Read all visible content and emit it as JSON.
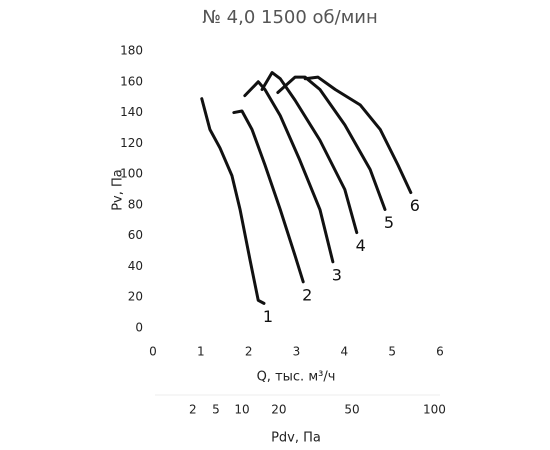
{
  "chart_data": {
    "type": "line",
    "title": "№ 4,0 1500 об/мин",
    "x_label": "Q, тыс. м³/ч",
    "y_label": "Pv, Па",
    "x2_label": "Pdv, Па",
    "xlim": [
      0,
      6
    ],
    "xticks": [
      0,
      1,
      2,
      3,
      4,
      5,
      6
    ],
    "ylim": [
      0,
      180
    ],
    "yticks": [
      0,
      20,
      40,
      60,
      80,
      100,
      120,
      140,
      160,
      180
    ],
    "x2lim": [
      0,
      104
    ],
    "x2scale": "sqrt",
    "x2ticks": [
      2,
      5,
      10,
      20,
      50,
      100
    ],
    "grid": false,
    "series": [
      {
        "name": "1",
        "color": "#111111",
        "x": [
          1.02,
          1.19,
          1.4,
          1.65,
          1.82,
          2.03,
          2.2,
          2.32
        ],
        "values": [
          149,
          129,
          117,
          99,
          77,
          44,
          18,
          16
        ]
      },
      {
        "name": "2",
        "color": "#111111",
        "x": [
          1.69,
          1.86,
          2.07,
          2.34,
          2.66,
          2.97,
          3.14
        ],
        "values": [
          140,
          141,
          129,
          106,
          77,
          47,
          30
        ]
      },
      {
        "name": "3",
        "color": "#111111",
        "x": [
          1.92,
          2.2,
          2.34,
          2.66,
          3.07,
          3.49,
          3.76
        ],
        "values": [
          151,
          160,
          155,
          138,
          109,
          77,
          43
        ]
      },
      {
        "name": "4",
        "color": "#111111",
        "x": [
          2.28,
          2.49,
          2.66,
          2.97,
          3.49,
          4.01,
          4.26
        ],
        "values": [
          155,
          166,
          162,
          148,
          122,
          90,
          62
        ]
      },
      {
        "name": "5",
        "color": "#111111",
        "x": [
          2.61,
          2.97,
          3.18,
          3.49,
          4.01,
          4.54,
          4.85
        ],
        "values": [
          153,
          163,
          163,
          155,
          132,
          103,
          77
        ]
      },
      {
        "name": "6",
        "color": "#111111",
        "x": [
          3.18,
          3.45,
          3.81,
          4.33,
          4.75,
          5.12,
          5.39
        ],
        "values": [
          162,
          163,
          155,
          145,
          129,
          106,
          88
        ]
      }
    ]
  }
}
